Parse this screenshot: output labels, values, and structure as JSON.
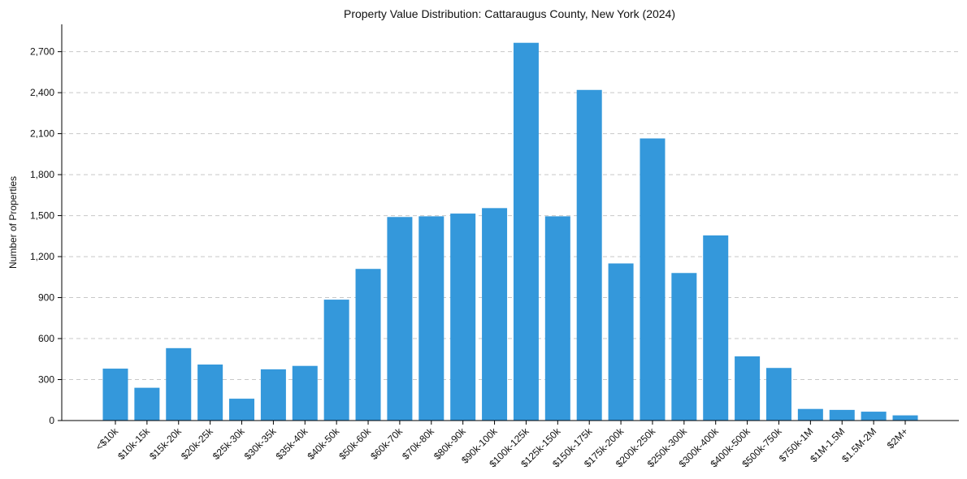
{
  "chart_data": {
    "type": "bar",
    "title": "Property Value Distribution: Cattaraugus County, New York (2024)",
    "xlabel": "",
    "ylabel": "Number of Properties",
    "ylim": [
      0,
      2900
    ],
    "yticks": [
      0,
      300,
      600,
      900,
      1200,
      1500,
      1800,
      2100,
      2400,
      2700
    ],
    "ytick_labels": [
      "0",
      "300",
      "600",
      "900",
      "1,200",
      "1,500",
      "1,800",
      "2,100",
      "2,400",
      "2,700"
    ],
    "grid": "y-dashed",
    "categories": [
      "<$10k",
      "$10k-15k",
      "$15k-20k",
      "$20k-25k",
      "$25k-30k",
      "$30k-35k",
      "$35k-40k",
      "$40k-50k",
      "$50k-60k",
      "$60k-70k",
      "$70k-80k",
      "$80k-90k",
      "$90k-100k",
      "$100k-125k",
      "$125k-150k",
      "$150k-175k",
      "$175k-200k",
      "$200k-250k",
      "$250k-300k",
      "$300k-400k",
      "$400k-500k",
      "$500k-750k",
      "$750k-1M",
      "$1M-1.5M",
      "$1.5M-2M",
      "$2M+"
    ],
    "values": [
      380,
      240,
      530,
      410,
      160,
      375,
      400,
      885,
      1110,
      1490,
      1495,
      1515,
      1555,
      2765,
      1495,
      2420,
      1150,
      2065,
      1080,
      1355,
      470,
      385,
      85,
      78,
      65,
      38
    ],
    "colors": {
      "bar": "#3498db"
    }
  }
}
